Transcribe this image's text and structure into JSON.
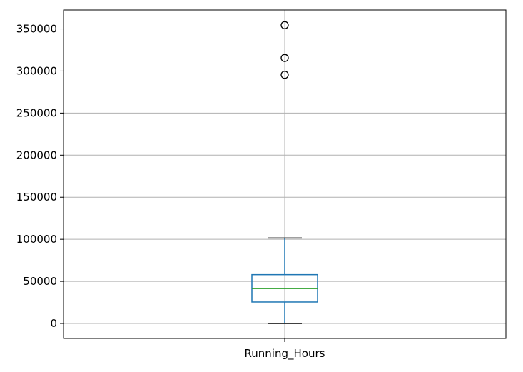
{
  "chart_data": {
    "type": "box",
    "categories": [
      "Running_Hours"
    ],
    "boxes": [
      {
        "name": "Running_Hours",
        "whisker_low": 0,
        "q1": 25500,
        "median": 41500,
        "q3": 58000,
        "whisker_high": 101500,
        "outliers": [
          295500,
          315500,
          354500
        ]
      }
    ],
    "ylim": [
      -17800,
      372500
    ],
    "yticks": [
      0,
      50000,
      100000,
      150000,
      200000,
      250000,
      300000,
      350000
    ],
    "ytick_labels": [
      "0",
      "50000",
      "100000",
      "150000",
      "200000",
      "250000",
      "300000",
      "350000"
    ],
    "grid": true,
    "colors": {
      "box": "#1f77b4",
      "median": "#2ca02c",
      "whisker": "#1f77b4",
      "cap": "#000000",
      "flier": "#000000",
      "grid": "#b0b0b0",
      "axes": "#000000"
    }
  }
}
